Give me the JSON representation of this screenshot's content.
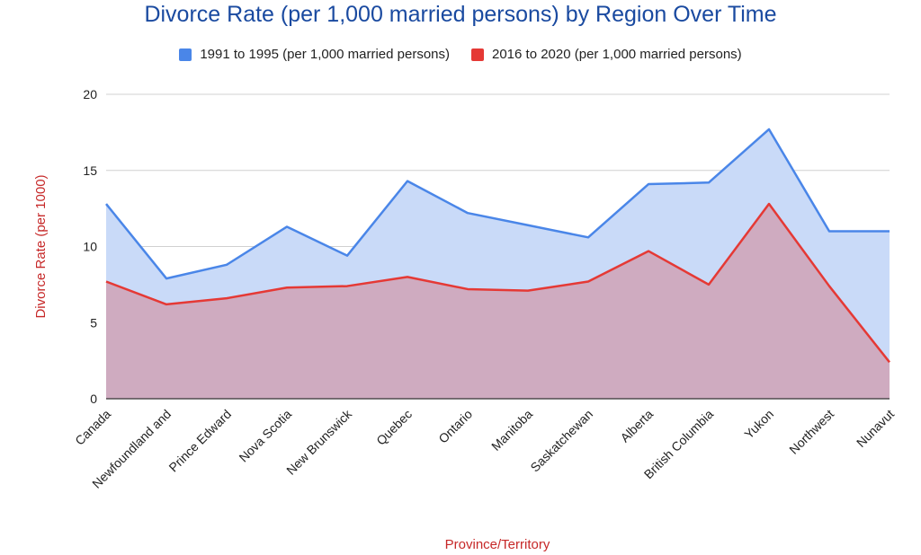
{
  "chart_data": {
    "type": "area",
    "title": "Divorce Rate (per 1,000 married persons) by Region Over Time",
    "xlabel": "Province/Territory",
    "ylabel": "Divorce Rate (per 1000)",
    "ylim": [
      0,
      20
    ],
    "yticks": [
      0,
      5,
      10,
      15,
      20
    ],
    "grid": true,
    "legend_position": "top",
    "categories": [
      "Canada",
      "Newfoundland and",
      "Prince Edward",
      "Nova Scotia",
      "New Brunswick",
      "Quebec",
      "Ontario",
      "Manitoba",
      "Saskatchewan",
      "Alberta",
      "British Columbia",
      "Yukon",
      "Northwest",
      "Nunavut"
    ],
    "series": [
      {
        "name": "1991 to 1995 (per 1,000 married persons)",
        "color": "#4a86e8",
        "fill": "#c9daf8",
        "values": [
          12.8,
          7.9,
          8.8,
          11.3,
          9.4,
          14.3,
          12.2,
          11.4,
          10.6,
          14.1,
          14.2,
          17.7,
          11.0,
          11.0
        ]
      },
      {
        "name": "2016 to 2020 (per 1,000 married persons)",
        "color": "#e53935",
        "fill": "#d0a9bd",
        "values": [
          7.7,
          6.2,
          6.6,
          7.3,
          7.4,
          8.0,
          7.2,
          7.1,
          7.7,
          9.7,
          7.5,
          12.8,
          7.4,
          2.4
        ]
      }
    ],
    "colors": {
      "title": "#1a4aa0",
      "axis_label": "#c62828",
      "grid": "#d0d0d0",
      "baseline": "#333333"
    }
  }
}
